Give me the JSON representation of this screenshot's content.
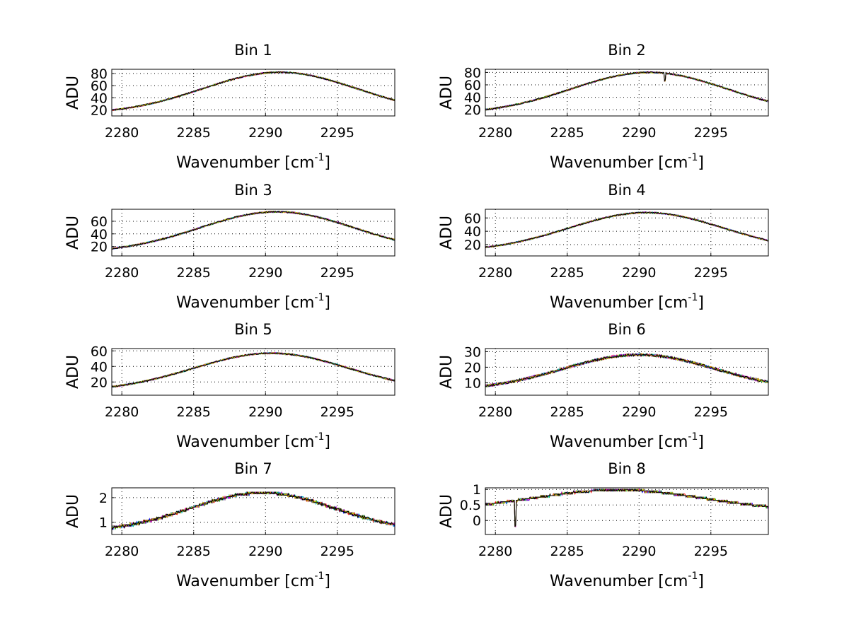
{
  "figure": {
    "shared_xlabel": "Wavenumber [cm",
    "shared_xlabel_sup": "-1",
    "shared_xlabel_close": "]",
    "shared_ylabel": "ADU"
  },
  "chart_data": [
    {
      "type": "line",
      "title": "Bin 1",
      "xlabel": "Wavenumber [cm-1]",
      "ylabel": "ADU",
      "xlim": [
        2279.3,
        2299
      ],
      "ylim": [
        10,
        87
      ],
      "xticks": [
        2280,
        2285,
        2290,
        2295
      ],
      "yticks": [
        20,
        40,
        60,
        80
      ],
      "grid": true,
      "shape": {
        "base": 13,
        "peak": 82,
        "center": 2291,
        "width": 5.4,
        "noise": 1.2
      },
      "series": [
        {
          "values_note": "spectrum"
        }
      ]
    },
    {
      "type": "line",
      "title": "Bin 2",
      "xlabel": "Wavenumber [cm-1]",
      "ylabel": "ADU",
      "xlim": [
        2279.3,
        2299
      ],
      "ylim": [
        10,
        85
      ],
      "xticks": [
        2280,
        2285,
        2290,
        2295
      ],
      "yticks": [
        20,
        40,
        60,
        80
      ],
      "grid": true,
      "shape": {
        "base": 13,
        "peak": 80,
        "center": 2290.7,
        "width": 5.4,
        "noise": 1.2,
        "dip": {
          "x": 2291.8,
          "depth": 12
        }
      },
      "series": [
        {
          "values_note": "spectrum"
        }
      ]
    },
    {
      "type": "line",
      "title": "Bin 3",
      "xlabel": "Wavenumber [cm-1]",
      "ylabel": "ADU",
      "xlim": [
        2279.3,
        2299
      ],
      "ylim": [
        5,
        79
      ],
      "xticks": [
        2280,
        2285,
        2290,
        2295
      ],
      "yticks": [
        20,
        40,
        60
      ],
      "grid": true,
      "shape": {
        "base": 10,
        "peak": 75,
        "center": 2290.8,
        "width": 5.4,
        "noise": 1.2
      },
      "series": [
        {
          "values_note": "spectrum"
        }
      ]
    },
    {
      "type": "line",
      "title": "Bin 4",
      "xlabel": "Wavenumber [cm-1]",
      "ylabel": "ADU",
      "xlim": [
        2279.3,
        2299
      ],
      "ylim": [
        3,
        73
      ],
      "xticks": [
        2280,
        2285,
        2290,
        2295
      ],
      "yticks": [
        20,
        40,
        60
      ],
      "grid": true,
      "shape": {
        "base": 9,
        "peak": 68,
        "center": 2290.5,
        "width": 5.4,
        "noise": 1.1
      },
      "series": [
        {
          "values_note": "spectrum"
        }
      ]
    },
    {
      "type": "line",
      "title": "Bin 5",
      "xlabel": "Wavenumber [cm-1]",
      "ylabel": "ADU",
      "xlim": [
        2279.3,
        2299
      ],
      "ylim": [
        3,
        63
      ],
      "xticks": [
        2280,
        2285,
        2290,
        2295
      ],
      "yticks": [
        20,
        40,
        60
      ],
      "grid": true,
      "shape": {
        "base": 8,
        "peak": 57,
        "center": 2290.4,
        "width": 5.4,
        "noise": 1.0
      },
      "series": [
        {
          "values_note": "spectrum"
        }
      ]
    },
    {
      "type": "line",
      "title": "Bin 6",
      "xlabel": "Wavenumber [cm-1]",
      "ylabel": "ADU",
      "xlim": [
        2279.3,
        2299
      ],
      "ylim": [
        2,
        32
      ],
      "xticks": [
        2280,
        2285,
        2290,
        2295
      ],
      "yticks": [
        10,
        20,
        30
      ],
      "grid": true,
      "shape": {
        "base": 5,
        "peak": 28,
        "center": 2290,
        "width": 5.3,
        "noise": 0.8
      },
      "series": [
        {
          "values_note": "spectrum"
        }
      ]
    },
    {
      "type": "line",
      "title": "Bin 7",
      "xlabel": "Wavenumber [cm-1]",
      "ylabel": "ADU",
      "xlim": [
        2279.3,
        2299
      ],
      "ylim": [
        0.5,
        2.4
      ],
      "xticks": [
        2280,
        2285,
        2290,
        2295
      ],
      "yticks": [
        1,
        2
      ],
      "grid": true,
      "shape": {
        "base": 0.6,
        "peak": 2.2,
        "center": 2289.8,
        "width": 5.0,
        "noise": 0.05,
        "step": 0.06
      },
      "series": [
        {
          "values_note": "spectrum"
        }
      ]
    },
    {
      "type": "line",
      "title": "Bin 8",
      "xlabel": "Wavenumber [cm-1]",
      "ylabel": "ADU",
      "xlim": [
        2279.3,
        2299
      ],
      "ylim": [
        -0.45,
        1.05
      ],
      "xticks": [
        2280,
        2285,
        2290,
        2295
      ],
      "yticks": [
        0,
        0.5,
        1
      ],
      "grid": true,
      "shape": {
        "base": 0.3,
        "peak": 0.98,
        "center": 2288.5,
        "width": 6.0,
        "noise": 0.03,
        "step": 0.05,
        "dip": {
          "x": 2281.4,
          "depth": 0.8
        }
      },
      "series": [
        {
          "values_note": "spectrum"
        }
      ]
    }
  ],
  "colors": {
    "series": [
      "#0000ff",
      "#00aa00",
      "#ff0000",
      "#00bfbf",
      "#bf00bf",
      "#bfbf00",
      "#000000"
    ],
    "axes": "#000000",
    "background": "#ffffff"
  }
}
